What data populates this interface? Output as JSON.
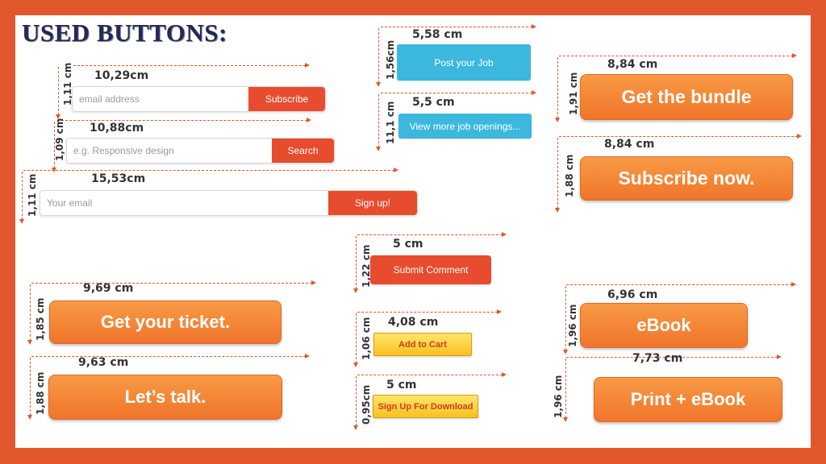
{
  "title": "USED BUTTONS:",
  "colors": {
    "accent": "#e2572b",
    "button_red": "#e84c2f",
    "button_blue": "#3cb7dd",
    "button_orange": "#f0752a",
    "button_yellow": "#f7c21e"
  },
  "subscribe_group": {
    "width": "10,29cm",
    "height": "1,11 cm",
    "placeholder": "email address",
    "button": "Subscribe"
  },
  "search_group": {
    "width": "10,88cm",
    "height": "1,09 cm",
    "placeholder": "e.g. Responsive design",
    "button": "Search"
  },
  "signup_group": {
    "width": "15,53cm",
    "height": "1,11 cm",
    "placeholder": "Your email",
    "button": "Sign up!"
  },
  "post_job": {
    "width": "5,58 cm",
    "height": "1,56cm",
    "label": "Post your Job"
  },
  "view_jobs": {
    "width": "5,5 cm",
    "height": "11,1 cm",
    "label": "View more job openings..."
  },
  "submit_comment": {
    "width": "5 cm",
    "height": "1,22 cm",
    "label": "Submit Comment"
  },
  "add_to_cart": {
    "width": "4,08 cm",
    "height": "1,06 cm",
    "label": "Add to Cart"
  },
  "signup_download": {
    "width": "5 cm",
    "height": "0,95cm",
    "label": "Sign Up For Download"
  },
  "ticket": {
    "width": "9,69 cm",
    "height": "1,85 cm",
    "label": "Get your ticket."
  },
  "talk": {
    "width": "9,63 cm",
    "height": "1,88 cm",
    "label": "Let’s talk."
  },
  "bundle": {
    "width": "8,84 cm",
    "height": "1,91 cm",
    "label": "Get the bundle"
  },
  "subscribe_now": {
    "width": "8,84 cm",
    "height": "1,88 cm",
    "label": "Subscribe now."
  },
  "ebook": {
    "width": "6,96 cm",
    "height": "1,96 cm",
    "label": "eBook"
  },
  "print_ebook": {
    "width": "7,73 cm",
    "height": "1,96 cm",
    "label": "Print + eBook"
  }
}
